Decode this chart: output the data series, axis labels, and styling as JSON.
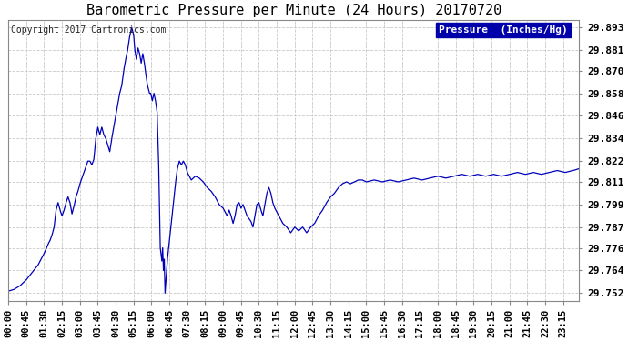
{
  "title": "Barometric Pressure per Minute (24 Hours) 20170720",
  "copyright": "Copyright 2017 Cartronics.com",
  "legend_label": "Pressure  (Inches/Hg)",
  "line_color": "#0000bb",
  "background_color": "#ffffff",
  "grid_color": "#bbbbbb",
  "yticks": [
    29.752,
    29.764,
    29.776,
    29.787,
    29.799,
    29.811,
    29.822,
    29.834,
    29.846,
    29.858,
    29.87,
    29.881,
    29.893
  ],
  "ylim": [
    29.748,
    29.897
  ],
  "xlim_minutes": [
    0,
    1435
  ],
  "xtick_labels": [
    "00:00",
    "00:45",
    "01:30",
    "02:15",
    "03:00",
    "03:45",
    "04:30",
    "05:15",
    "06:00",
    "06:45",
    "07:30",
    "08:15",
    "09:00",
    "09:45",
    "10:30",
    "11:15",
    "12:00",
    "12:45",
    "13:30",
    "14:15",
    "15:00",
    "15:45",
    "16:30",
    "17:15",
    "18:00",
    "18:45",
    "19:30",
    "20:15",
    "21:00",
    "21:45",
    "22:30",
    "23:15"
  ],
  "key_points": [
    [
      0,
      29.753
    ],
    [
      15,
      29.754
    ],
    [
      30,
      29.756
    ],
    [
      45,
      29.759
    ],
    [
      60,
      29.763
    ],
    [
      75,
      29.767
    ],
    [
      90,
      29.773
    ],
    [
      100,
      29.778
    ],
    [
      105,
      29.78
    ],
    [
      110,
      29.783
    ],
    [
      115,
      29.787
    ],
    [
      120,
      29.796
    ],
    [
      125,
      29.8
    ],
    [
      130,
      29.796
    ],
    [
      135,
      29.793
    ],
    [
      140,
      29.796
    ],
    [
      145,
      29.8
    ],
    [
      150,
      29.803
    ],
    [
      155,
      29.8
    ],
    [
      160,
      29.794
    ],
    [
      165,
      29.798
    ],
    [
      170,
      29.803
    ],
    [
      175,
      29.806
    ],
    [
      180,
      29.81
    ],
    [
      190,
      29.816
    ],
    [
      200,
      29.822
    ],
    [
      205,
      29.822
    ],
    [
      210,
      29.82
    ],
    [
      215,
      29.823
    ],
    [
      220,
      29.834
    ],
    [
      225,
      29.84
    ],
    [
      230,
      29.836
    ],
    [
      235,
      29.84
    ],
    [
      240,
      29.836
    ],
    [
      245,
      29.834
    ],
    [
      255,
      29.827
    ],
    [
      260,
      29.834
    ],
    [
      265,
      29.84
    ],
    [
      270,
      29.846
    ],
    [
      275,
      29.852
    ],
    [
      280,
      29.858
    ],
    [
      285,
      29.862
    ],
    [
      290,
      29.87
    ],
    [
      295,
      29.876
    ],
    [
      300,
      29.881
    ],
    [
      305,
      29.888
    ],
    [
      310,
      29.893
    ],
    [
      315,
      29.889
    ],
    [
      318,
      29.881
    ],
    [
      322,
      29.876
    ],
    [
      326,
      29.882
    ],
    [
      330,
      29.879
    ],
    [
      334,
      29.874
    ],
    [
      338,
      29.879
    ],
    [
      342,
      29.874
    ],
    [
      345,
      29.869
    ],
    [
      350,
      29.862
    ],
    [
      355,
      29.858
    ],
    [
      358,
      29.858
    ],
    [
      362,
      29.854
    ],
    [
      366,
      29.858
    ],
    [
      370,
      29.854
    ],
    [
      374,
      29.848
    ],
    [
      378,
      29.82
    ],
    [
      382,
      29.776
    ],
    [
      386,
      29.769
    ],
    [
      388,
      29.776
    ],
    [
      390,
      29.764
    ],
    [
      392,
      29.77
    ],
    [
      394,
      29.752
    ],
    [
      396,
      29.758
    ],
    [
      398,
      29.764
    ],
    [
      400,
      29.77
    ],
    [
      405,
      29.78
    ],
    [
      410,
      29.79
    ],
    [
      415,
      29.8
    ],
    [
      420,
      29.81
    ],
    [
      425,
      29.818
    ],
    [
      430,
      29.822
    ],
    [
      435,
      29.82
    ],
    [
      440,
      29.822
    ],
    [
      445,
      29.82
    ],
    [
      450,
      29.816
    ],
    [
      460,
      29.812
    ],
    [
      470,
      29.814
    ],
    [
      480,
      29.813
    ],
    [
      490,
      29.811
    ],
    [
      500,
      29.808
    ],
    [
      510,
      29.806
    ],
    [
      520,
      29.803
    ],
    [
      530,
      29.799
    ],
    [
      540,
      29.797
    ],
    [
      550,
      29.793
    ],
    [
      555,
      29.796
    ],
    [
      560,
      29.793
    ],
    [
      565,
      29.789
    ],
    [
      570,
      29.793
    ],
    [
      575,
      29.799
    ],
    [
      580,
      29.8
    ],
    [
      585,
      29.797
    ],
    [
      590,
      29.799
    ],
    [
      600,
      29.793
    ],
    [
      610,
      29.79
    ],
    [
      615,
      29.787
    ],
    [
      620,
      29.793
    ],
    [
      625,
      29.799
    ],
    [
      630,
      29.8
    ],
    [
      635,
      29.796
    ],
    [
      640,
      29.793
    ],
    [
      645,
      29.799
    ],
    [
      650,
      29.805
    ],
    [
      655,
      29.808
    ],
    [
      660,
      29.805
    ],
    [
      665,
      29.8
    ],
    [
      670,
      29.797
    ],
    [
      680,
      29.793
    ],
    [
      690,
      29.789
    ],
    [
      700,
      29.787
    ],
    [
      710,
      29.784
    ],
    [
      720,
      29.787
    ],
    [
      730,
      29.785
    ],
    [
      740,
      29.787
    ],
    [
      750,
      29.784
    ],
    [
      760,
      29.787
    ],
    [
      770,
      29.789
    ],
    [
      780,
      29.793
    ],
    [
      790,
      29.796
    ],
    [
      800,
      29.8
    ],
    [
      810,
      29.803
    ],
    [
      820,
      29.805
    ],
    [
      830,
      29.808
    ],
    [
      840,
      29.81
    ],
    [
      850,
      29.811
    ],
    [
      860,
      29.81
    ],
    [
      870,
      29.811
    ],
    [
      880,
      29.812
    ],
    [
      890,
      29.812
    ],
    [
      900,
      29.811
    ],
    [
      920,
      29.812
    ],
    [
      940,
      29.811
    ],
    [
      960,
      29.812
    ],
    [
      980,
      29.811
    ],
    [
      1000,
      29.812
    ],
    [
      1020,
      29.813
    ],
    [
      1040,
      29.812
    ],
    [
      1060,
      29.813
    ],
    [
      1080,
      29.814
    ],
    [
      1100,
      29.813
    ],
    [
      1120,
      29.814
    ],
    [
      1140,
      29.815
    ],
    [
      1160,
      29.814
    ],
    [
      1180,
      29.815
    ],
    [
      1200,
      29.814
    ],
    [
      1220,
      29.815
    ],
    [
      1240,
      29.814
    ],
    [
      1260,
      29.815
    ],
    [
      1280,
      29.816
    ],
    [
      1300,
      29.815
    ],
    [
      1320,
      29.816
    ],
    [
      1340,
      29.815
    ],
    [
      1360,
      29.816
    ],
    [
      1380,
      29.817
    ],
    [
      1400,
      29.816
    ],
    [
      1420,
      29.817
    ],
    [
      1435,
      29.818
    ]
  ]
}
